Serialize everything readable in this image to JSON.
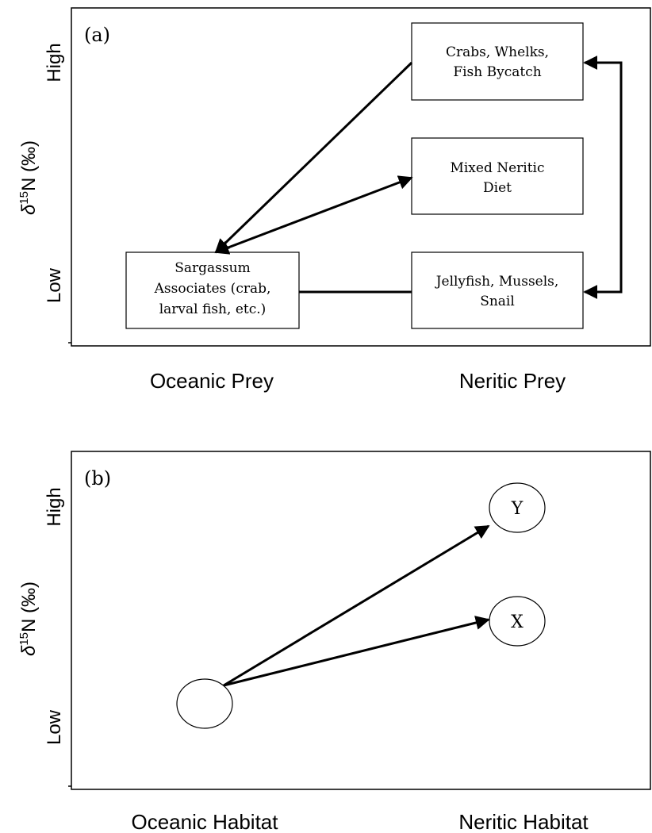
{
  "panel_a": {
    "tag": "(a)",
    "y_axis": {
      "label_delta": "δ",
      "label_sup": "15",
      "label_rest": "N (‰)",
      "high": "High",
      "low": "Low"
    },
    "x_axis": {
      "left": "Oceanic Prey",
      "right": "Neritic Prey"
    },
    "boxes": {
      "crabs": [
        "Crabs, Whelks,",
        "Fish Bycatch"
      ],
      "mixed": [
        "Mixed Neritic",
        "Diet"
      ],
      "jellyfish": [
        "Jellyfish, Mussels,",
        "Snail"
      ],
      "sargassum": [
        "Sargassum",
        "Associates (crab,",
        "larval fish, etc.)"
      ]
    }
  },
  "panel_b": {
    "tag": "(b)",
    "y_axis": {
      "label_delta": "δ",
      "label_sup": "15",
      "label_rest": "N (‰)",
      "high": "High",
      "low": "Low"
    },
    "x_axis": {
      "left": "Oceanic Habitat",
      "right": "Neritic Habitat"
    },
    "nodes": {
      "y": "Y",
      "x": "X"
    }
  },
  "colors": {
    "stroke": "#000000",
    "background": "#ffffff"
  }
}
